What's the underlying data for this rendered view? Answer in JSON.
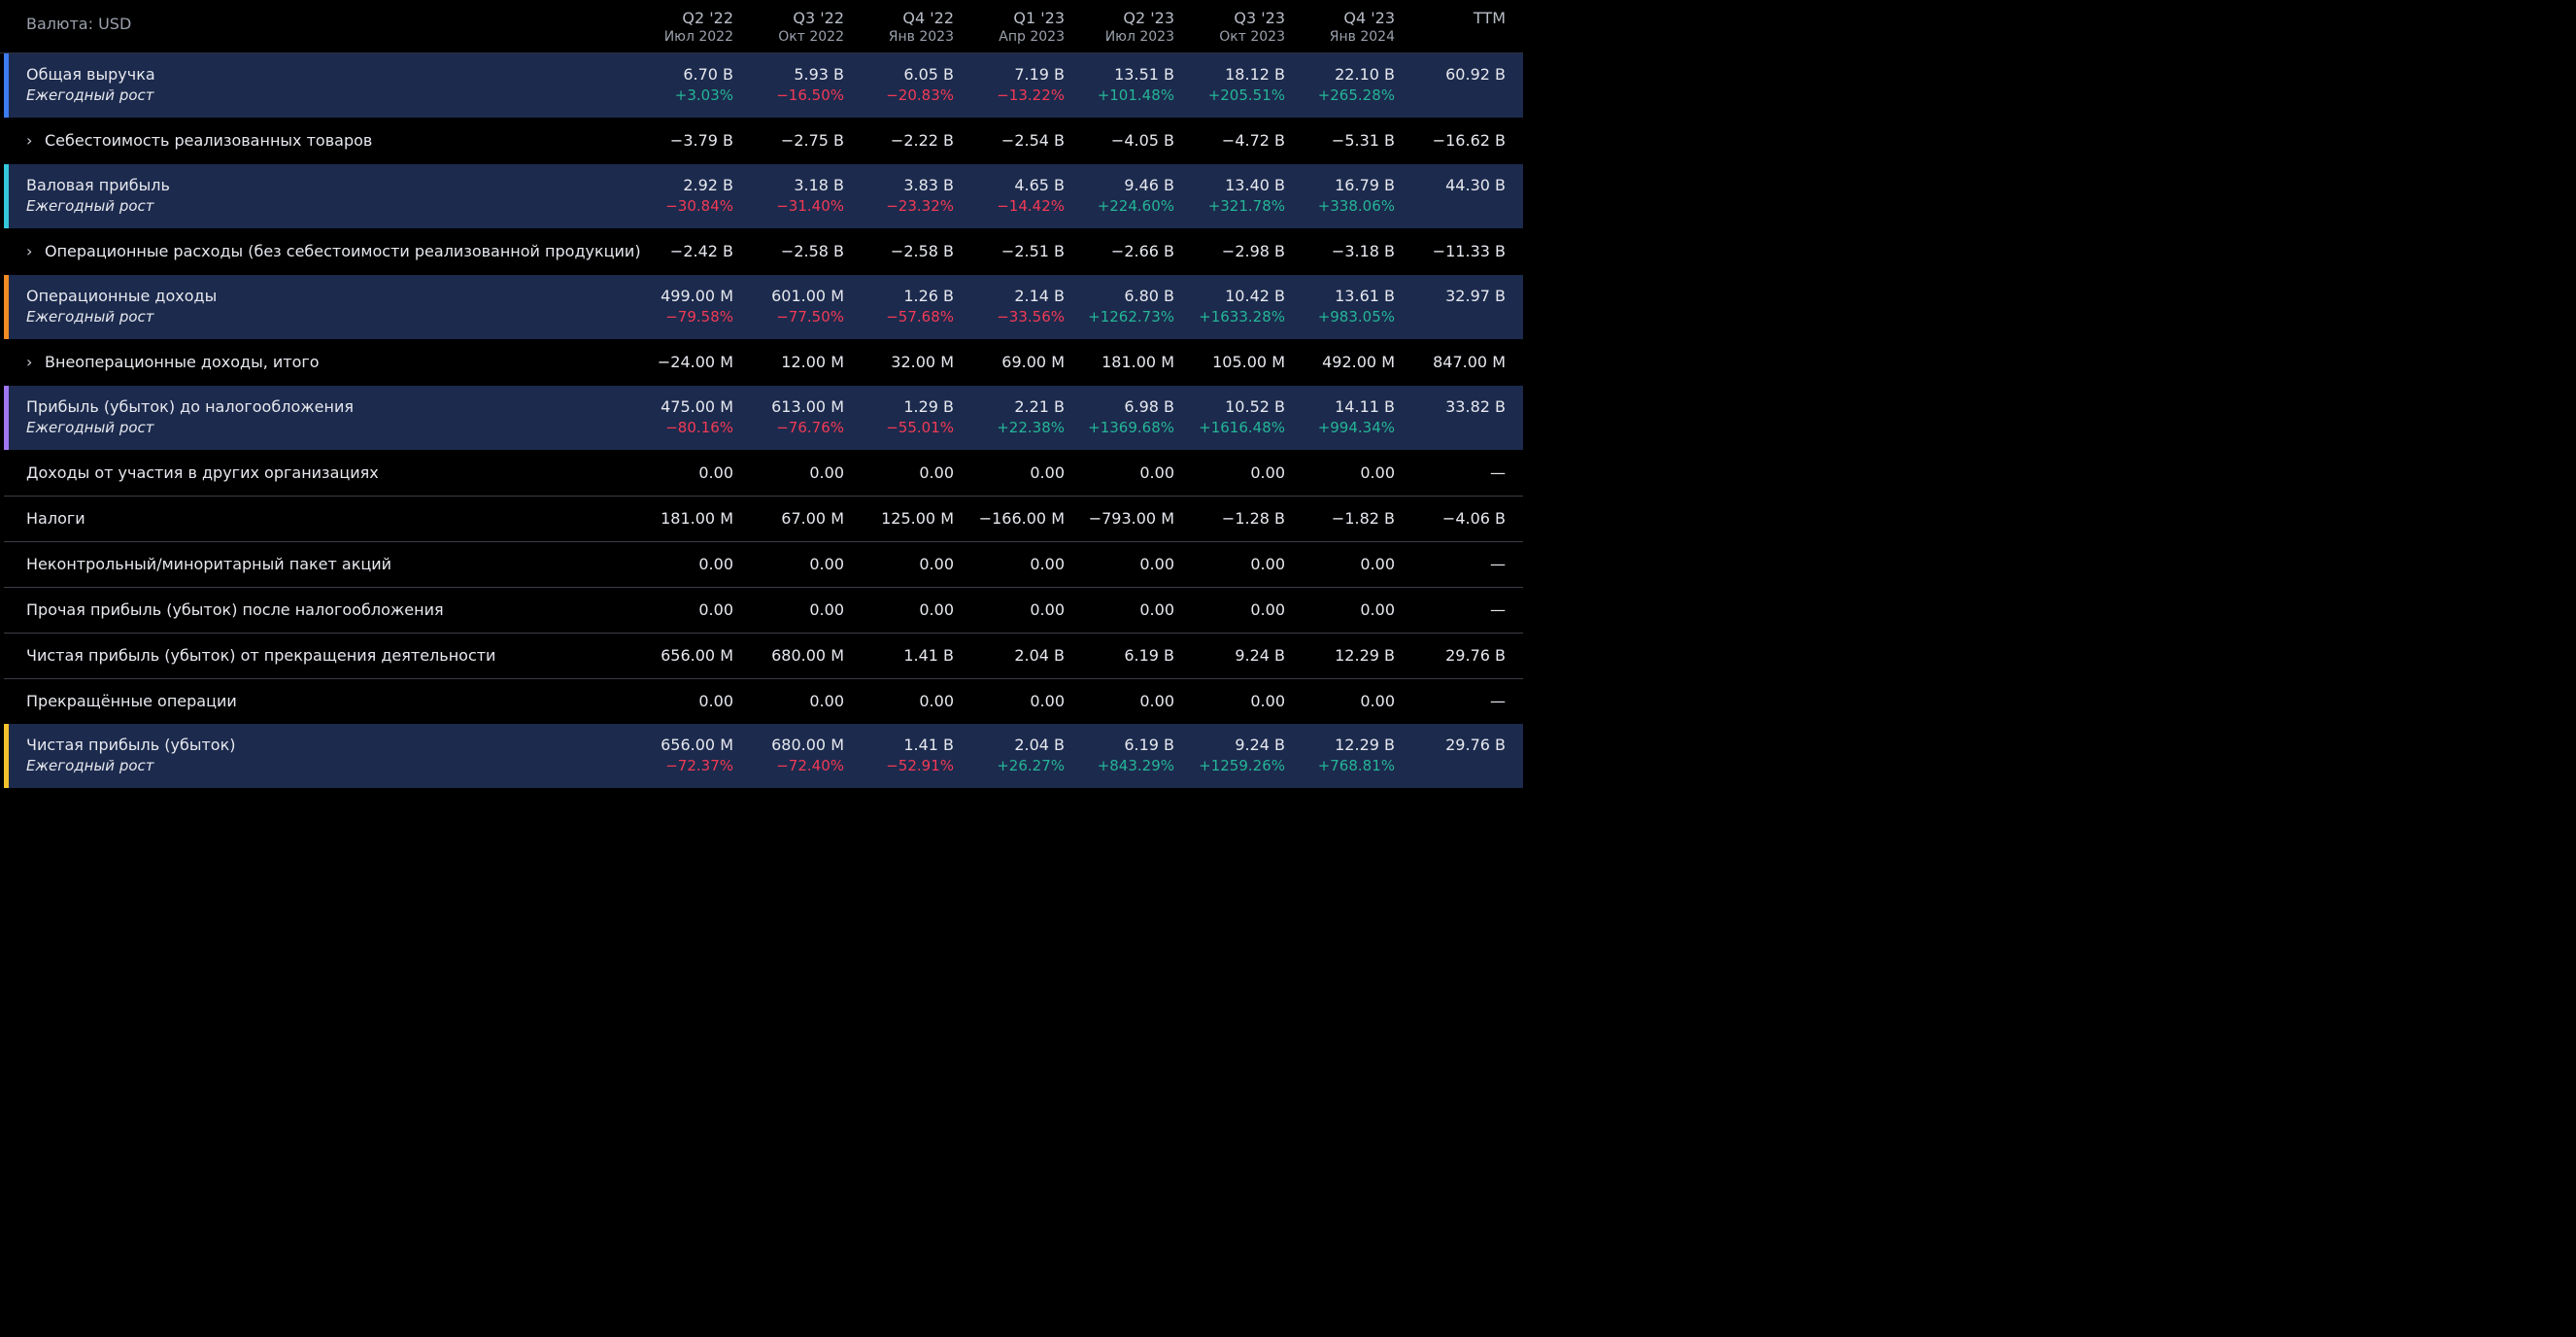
{
  "header": {
    "currency": "Валюта: USD",
    "periods": [
      {
        "q": "Q2 '22",
        "d": "Июл 2022"
      },
      {
        "q": "Q3 '22",
        "d": "Окт 2022"
      },
      {
        "q": "Q4 '22",
        "d": "Янв 2023"
      },
      {
        "q": "Q1 '23",
        "d": "Апр 2023"
      },
      {
        "q": "Q2 '23",
        "d": "Июл 2023"
      },
      {
        "q": "Q3 '23",
        "d": "Окт 2023"
      },
      {
        "q": "Q4 '23",
        "d": "Янв 2024"
      },
      {
        "q": "TTM",
        "d": ""
      }
    ]
  },
  "growth_label": "Ежегодный рост",
  "rows": [
    {
      "kind": "hl",
      "color": "#3d7bf0",
      "label": "Общая выручка",
      "values": [
        "6.70 B",
        "5.93 B",
        "6.05 B",
        "7.19 B",
        "13.51 B",
        "18.12 B",
        "22.10 B",
        "60.92 B"
      ],
      "growth": [
        "+3.03%",
        "−16.50%",
        "−20.83%",
        "−13.22%",
        "+101.48%",
        "+205.51%",
        "+265.28%",
        ""
      ]
    },
    {
      "kind": "sub",
      "label": "Себестоимость реализованных товаров",
      "chevron": "›",
      "values": [
        "−3.79 B",
        "−2.75 B",
        "−2.22 B",
        "−2.54 B",
        "−4.05 B",
        "−4.72 B",
        "−5.31 B",
        "−16.62 B"
      ]
    },
    {
      "kind": "hl",
      "color": "#35c8da",
      "label": "Валовая прибыль",
      "values": [
        "2.92 B",
        "3.18 B",
        "3.83 B",
        "4.65 B",
        "9.46 B",
        "13.40 B",
        "16.79 B",
        "44.30 B"
      ],
      "growth": [
        "−30.84%",
        "−31.40%",
        "−23.32%",
        "−14.42%",
        "+224.60%",
        "+321.78%",
        "+338.06%",
        ""
      ]
    },
    {
      "kind": "sub",
      "label": "Операционные расходы (без себестоимости реализованной продукции)",
      "chevron": "›",
      "values": [
        "−2.42 B",
        "−2.58 B",
        "−2.58 B",
        "−2.51 B",
        "−2.66 B",
        "−2.98 B",
        "−3.18 B",
        "−11.33 B"
      ]
    },
    {
      "kind": "hl",
      "color": "#f08a24",
      "label": "Операционные доходы",
      "values": [
        "499.00 M",
        "601.00 M",
        "1.26 B",
        "2.14 B",
        "6.80 B",
        "10.42 B",
        "13.61 B",
        "32.97 B"
      ],
      "growth": [
        "−79.58%",
        "−77.50%",
        "−57.68%",
        "−33.56%",
        "+1262.73%",
        "+1633.28%",
        "+983.05%",
        ""
      ]
    },
    {
      "kind": "sub",
      "label": "Внеоперационные доходы, итого",
      "chevron": "›",
      "values": [
        "−24.00 M",
        "12.00 M",
        "32.00 M",
        "69.00 M",
        "181.00 M",
        "105.00 M",
        "492.00 M",
        "847.00 M"
      ]
    },
    {
      "kind": "hl",
      "color": "#a076f0",
      "label": "Прибыль (убыток) до налогообложения",
      "values": [
        "475.00 M",
        "613.00 M",
        "1.29 B",
        "2.21 B",
        "6.98 B",
        "10.52 B",
        "14.11 B",
        "33.82 B"
      ],
      "growth": [
        "−80.16%",
        "−76.76%",
        "−55.01%",
        "+22.38%",
        "+1369.68%",
        "+1616.48%",
        "+994.34%",
        ""
      ]
    },
    {
      "kind": "plain",
      "label": "Доходы от участия в других организациях",
      "values": [
        "0.00",
        "0.00",
        "0.00",
        "0.00",
        "0.00",
        "0.00",
        "0.00",
        "—"
      ]
    },
    {
      "kind": "plain",
      "label": "Налоги",
      "values": [
        "181.00 M",
        "67.00 M",
        "125.00 M",
        "−166.00 M",
        "−793.00 M",
        "−1.28 B",
        "−1.82 B",
        "−4.06 B"
      ]
    },
    {
      "kind": "plain",
      "label": "Неконтрольный/миноритарный пакет акций",
      "values": [
        "0.00",
        "0.00",
        "0.00",
        "0.00",
        "0.00",
        "0.00",
        "0.00",
        "—"
      ]
    },
    {
      "kind": "plain",
      "label": "Прочая прибыль (убыток) после налогообложения",
      "values": [
        "0.00",
        "0.00",
        "0.00",
        "0.00",
        "0.00",
        "0.00",
        "0.00",
        "—"
      ]
    },
    {
      "kind": "plain",
      "label": "Чистая прибыль (убыток) от прекращения деятельности",
      "values": [
        "656.00 M",
        "680.00 M",
        "1.41 B",
        "2.04 B",
        "6.19 B",
        "9.24 B",
        "12.29 B",
        "29.76 B"
      ]
    },
    {
      "kind": "plain",
      "last": true,
      "label": "Прекращённые операции",
      "values": [
        "0.00",
        "0.00",
        "0.00",
        "0.00",
        "0.00",
        "0.00",
        "0.00",
        "—"
      ]
    },
    {
      "kind": "hl",
      "color": "#f2c12e",
      "label": "Чистая прибыль (убыток)",
      "values": [
        "656.00 M",
        "680.00 M",
        "1.41 B",
        "2.04 B",
        "6.19 B",
        "9.24 B",
        "12.29 B",
        "29.76 B"
      ],
      "growth": [
        "−72.37%",
        "−72.40%",
        "−52.91%",
        "+26.27%",
        "+843.29%",
        "+1259.26%",
        "+768.81%",
        ""
      ]
    }
  ]
}
